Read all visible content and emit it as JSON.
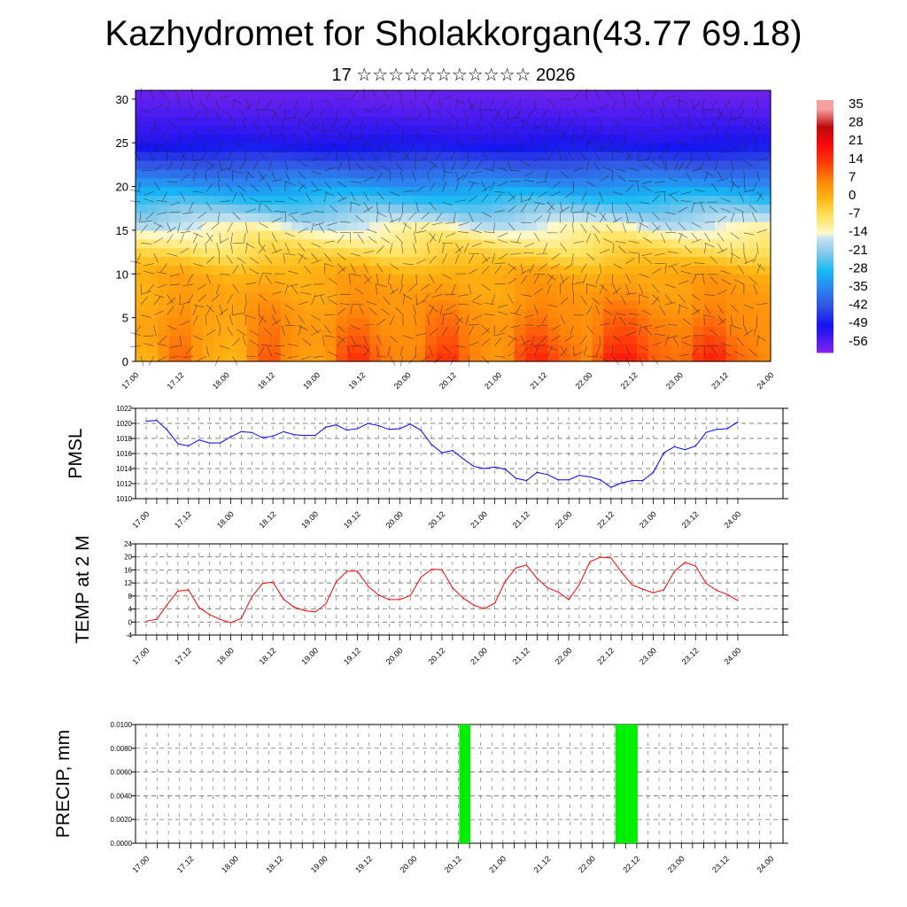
{
  "header": {
    "title": "Kazhydromet for Sholakkorgan(43.77 69.18)",
    "subtitle": "17 ☆☆☆☆☆☆☆☆☆☆☆ 2026"
  },
  "chart_data": [
    {
      "type": "heatmap",
      "name": "temperature-wind-cross-section",
      "x_tick_labels": [
        "17.00",
        "17.12",
        "18.00",
        "18.12",
        "19.00",
        "19.12",
        "20.00",
        "20.12",
        "21.00",
        "21.12",
        "22.00",
        "22.12",
        "23.00",
        "23.12",
        "24.00"
      ],
      "y_tick_labels": [
        "0",
        "5",
        "10",
        "15",
        "20",
        "25",
        "30"
      ],
      "ylim": [
        0,
        31
      ],
      "levels": [
        0,
        5,
        10,
        15,
        20,
        25,
        30
      ],
      "mean_values": [
        9,
        6,
        2,
        -12,
        -32,
        -50,
        -57
      ],
      "colorbar": {
        "labels": [
          "35",
          "28",
          "21",
          "14",
          "7",
          "0",
          "-7",
          "-14",
          "-21",
          "-28",
          "-35",
          "-42",
          "-49",
          "-56"
        ],
        "range": [
          -60,
          38
        ]
      },
      "overlay": "wind barbs"
    },
    {
      "type": "line",
      "name": "pmsl",
      "ylabel": "PMSL",
      "ylim": [
        1010,
        1022
      ],
      "y_tick_labels": [
        "1010",
        "1012",
        "1014",
        "1016",
        "1018",
        "1020",
        "1022"
      ],
      "x_tick_labels": [
        "17.00",
        "17.12",
        "18.00",
        "18.12",
        "19.00",
        "19.12",
        "20.00",
        "20.12",
        "21.00",
        "21.12",
        "22.00",
        "22.12",
        "23.00",
        "23.12",
        "24.00"
      ],
      "step_hours": 3,
      "color": "#0000ff",
      "values": [
        1020.3,
        1020.4,
        1019.1,
        1017.3,
        1017.0,
        1017.8,
        1017.4,
        1017.4,
        1018.2,
        1018.9,
        1018.8,
        1018.1,
        1018.3,
        1018.9,
        1018.5,
        1018.4,
        1018.4,
        1019.5,
        1019.8,
        1019.1,
        1019.3,
        1020.0,
        1019.7,
        1019.2,
        1019.3,
        1019.9,
        1019.1,
        1017.2,
        1016.1,
        1016.4,
        1015.3,
        1014.3,
        1014.0,
        1014.2,
        1013.9,
        1012.7,
        1012.4,
        1013.5,
        1013.2,
        1012.5,
        1012.5,
        1013.1,
        1012.9,
        1012.5,
        1011.5,
        1012.1,
        1012.4,
        1012.4,
        1013.5,
        1016.1,
        1016.9,
        1016.5,
        1017.0,
        1018.8,
        1019.2,
        1019.3,
        1020.2
      ]
    },
    {
      "type": "line",
      "name": "temp-2m",
      "ylabel": "TEMP at 2 M",
      "ylim": [
        -4,
        24
      ],
      "y_tick_labels": [
        "-4",
        "0",
        "4",
        "8",
        "12",
        "16",
        "20",
        "24"
      ],
      "x_tick_labels": [
        "17.00",
        "17.12",
        "18.00",
        "18.12",
        "19.00",
        "19.12",
        "20.00",
        "20.12",
        "21.00",
        "21.12",
        "22.00",
        "22.12",
        "23.00",
        "23.12",
        "24.00"
      ],
      "step_hours": 3,
      "color": "#ff0000",
      "values": [
        0.3,
        0.8,
        5.4,
        9.5,
        9.9,
        4.5,
        2.3,
        0.8,
        -0.2,
        1.1,
        7.7,
        11.8,
        12.3,
        7.0,
        4.6,
        3.5,
        3.1,
        5.5,
        12.4,
        15.6,
        15.6,
        11.0,
        8.3,
        6.9,
        6.9,
        8.1,
        13.7,
        16.2,
        16.1,
        10.5,
        7.4,
        5.2,
        4.1,
        5.8,
        12.5,
        16.6,
        17.5,
        13.4,
        10.5,
        9.2,
        6.9,
        11.5,
        18.5,
        19.9,
        19.7,
        15.3,
        11.4,
        10.1,
        9.0,
        9.9,
        15.6,
        18.3,
        17.2,
        11.9,
        9.7,
        8.5,
        6.6
      ]
    },
    {
      "type": "bar",
      "name": "precip",
      "ylabel": "PRECIP, mm",
      "ylim": [
        0,
        0.01
      ],
      "y_tick_labels": [
        "0.0000",
        "0.0020",
        "0.0040",
        "0.0060",
        "0.0080",
        "0.0100"
      ],
      "x_tick_labels": [
        "17.00",
        "17.12",
        "18.00",
        "18.12",
        "19.00",
        "19.12",
        "20.00",
        "20.12",
        "21.00",
        "21.12",
        "22.00",
        "22.12",
        "23.00",
        "23.12",
        "24.00"
      ],
      "step_hours": 3,
      "color": "#00ee00",
      "bars": [
        {
          "start": "20.12",
          "index": 28,
          "value": 0.01
        },
        {
          "start": "22.06",
          "index": 42,
          "value": 0.01
        },
        {
          "start": "22.09",
          "index": 43,
          "value": 0.01
        }
      ]
    }
  ]
}
